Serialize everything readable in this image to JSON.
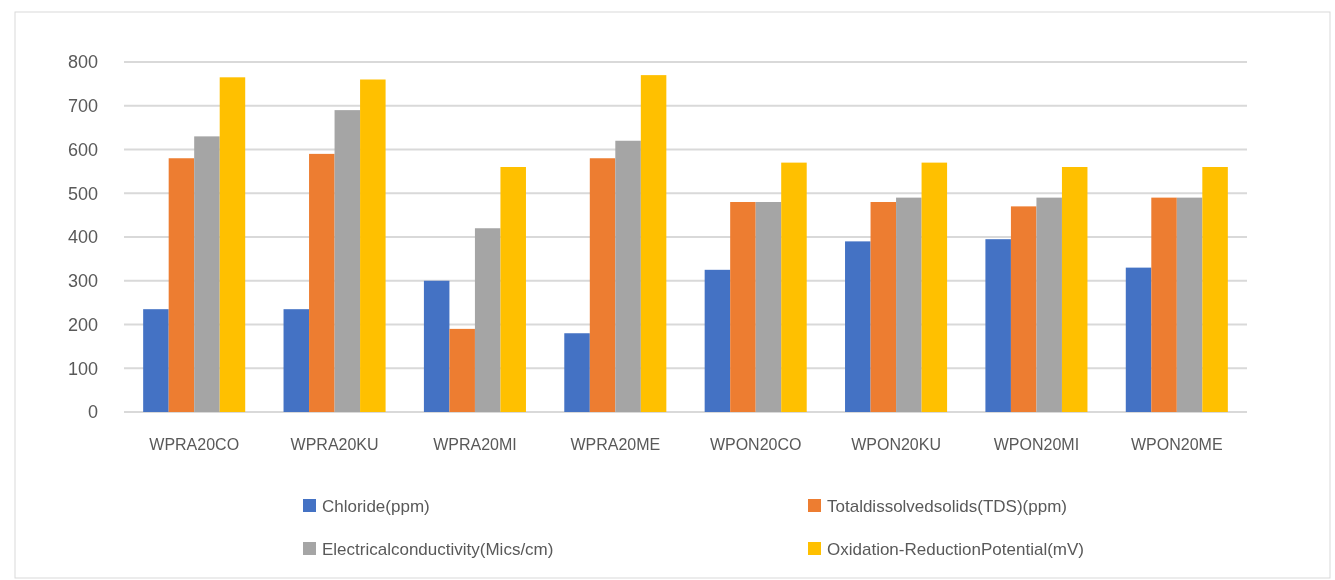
{
  "chart_data": {
    "type": "bar",
    "categories": [
      "WPRA20CO",
      "WPRA20KU",
      "WPRA20MI",
      "WPRA20ME",
      "WPON20CO",
      "WPON20KU",
      "WPON20MI",
      "WPON20ME"
    ],
    "series": [
      {
        "name": "Chloride(ppm)",
        "color": "#4472c4",
        "values": [
          235,
          235,
          300,
          180,
          325,
          390,
          395,
          330
        ]
      },
      {
        "name": "Totaldissolvedsolids(TDS)(ppm)",
        "color": "#ed7d31",
        "values": [
          580,
          590,
          190,
          580,
          480,
          480,
          470,
          490
        ]
      },
      {
        "name": "Electricalconductivity(Mics/cm)",
        "color": "#a5a5a5",
        "values": [
          630,
          690,
          420,
          620,
          480,
          490,
          490,
          490
        ]
      },
      {
        "name": "Oxidation-ReductionPotential(mV)",
        "color": "#ffc000",
        "values": [
          765,
          760,
          560,
          770,
          570,
          570,
          560,
          560
        ]
      }
    ],
    "ylim": [
      0,
      800
    ],
    "yticks": [
      0,
      100,
      200,
      300,
      400,
      500,
      600,
      700,
      800
    ],
    "grid": "y",
    "legend": "bottom"
  }
}
